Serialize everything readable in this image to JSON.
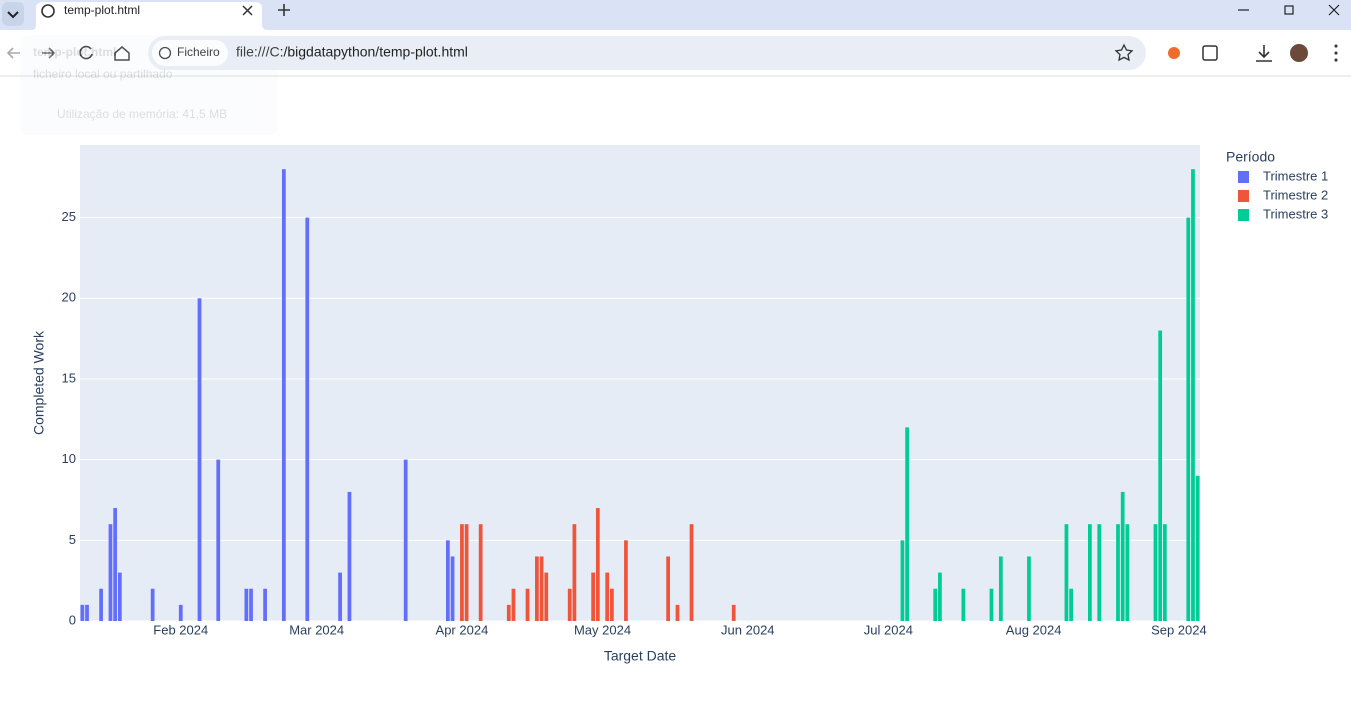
{
  "browser": {
    "tab_title": "temp-plot.html",
    "site_chip": "Ficheiro",
    "url": "file:///C:/bigdatapython/temp-plot.html",
    "tooltip": {
      "title": "temp-plot.html",
      "subtitle": "ficheiro local ou partilhado",
      "memory": "Utilização de memória: 41,5 MB"
    }
  },
  "chart_data": {
    "type": "bar",
    "x_label": "Target Date",
    "y_label": "Completed Work",
    "legend_title": "Período",
    "legend": "top-right",
    "grid": true,
    "xlim": [
      "2024-01-10T12:00:00Z",
      "2024-09-05T12:00:00Z"
    ],
    "xticks": [
      {
        "value": "2024-02-01",
        "label": "Feb 2024"
      },
      {
        "value": "2024-03-01",
        "label": "Mar 2024"
      },
      {
        "value": "2024-04-01",
        "label": "Apr 2024"
      },
      {
        "value": "2024-05-01",
        "label": "May 2024"
      },
      {
        "value": "2024-06-01",
        "label": "Jun 2024"
      },
      {
        "value": "2024-07-01",
        "label": "Jul 2024"
      },
      {
        "value": "2024-08-01",
        "label": "Aug 2024"
      },
      {
        "value": "2024-09-01",
        "label": "Sep 2024"
      }
    ],
    "ylim": [
      0,
      29.5
    ],
    "yticks": [
      0,
      5,
      10,
      15,
      20,
      25
    ],
    "series": [
      {
        "name": "Trimestre 1",
        "color": "#636efa",
        "x": [
          "2024-01-11",
          "2024-01-12",
          "2024-01-15",
          "2024-01-17",
          "2024-01-18",
          "2024-01-19",
          "2024-01-26",
          "2024-02-01",
          "2024-02-05",
          "2024-02-09",
          "2024-02-15",
          "2024-02-16",
          "2024-02-19",
          "2024-02-23",
          "2024-02-28",
          "2024-03-06",
          "2024-03-08",
          "2024-03-20",
          "2024-03-29",
          "2024-03-30"
        ],
        "values": [
          1,
          1,
          2,
          6,
          7,
          3,
          2,
          1,
          20,
          10,
          2,
          2,
          2,
          28,
          25,
          3,
          8,
          10,
          5,
          4
        ]
      },
      {
        "name": "Trimestre 2",
        "color": "#ef553b",
        "x": [
          "2024-04-01",
          "2024-04-02",
          "2024-04-05",
          "2024-04-11",
          "2024-04-12",
          "2024-04-15",
          "2024-04-17",
          "2024-04-18",
          "2024-04-19",
          "2024-04-24",
          "2024-04-25",
          "2024-04-29",
          "2024-04-30",
          "2024-05-02",
          "2024-05-03",
          "2024-05-06",
          "2024-05-15",
          "2024-05-17",
          "2024-05-20",
          "2024-05-29"
        ],
        "values": [
          6,
          6,
          6,
          1,
          2,
          2,
          4,
          4,
          3,
          2,
          6,
          3,
          7,
          3,
          2,
          5,
          4,
          1,
          6,
          1
        ]
      },
      {
        "name": "Trimestre 3",
        "color": "#00cc96",
        "x": [
          "2024-07-04",
          "2024-07-05",
          "2024-07-11",
          "2024-07-12",
          "2024-07-17",
          "2024-07-23",
          "2024-07-25",
          "2024-07-31",
          "2024-08-08",
          "2024-08-09",
          "2024-08-13",
          "2024-08-15",
          "2024-08-19",
          "2024-08-20",
          "2024-08-21",
          "2024-08-27",
          "2024-08-28",
          "2024-08-29",
          "2024-09-03",
          "2024-09-04",
          "2024-09-05"
        ],
        "values": [
          5,
          12,
          2,
          3,
          2,
          2,
          4,
          4,
          6,
          2,
          6,
          6,
          6,
          8,
          6,
          6,
          18,
          6,
          25,
          28,
          9
        ]
      }
    ]
  }
}
